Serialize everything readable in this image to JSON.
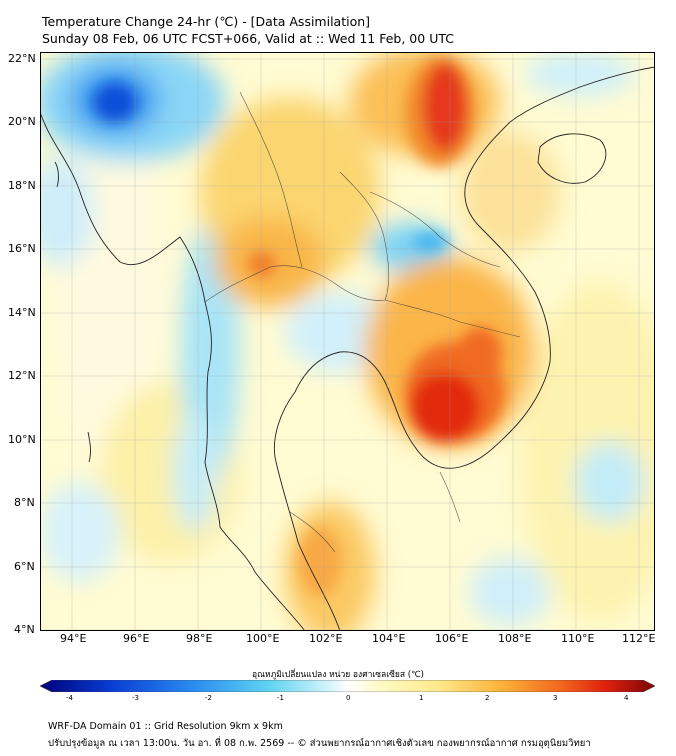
{
  "title": {
    "line1": "Temperature Change 24-hr (℃) - [Data Assimilation]",
    "line2": "Sunday 08 Feb, 06 UTC FCST+066, Valid at :: Wed 11 Feb, 00 UTC"
  },
  "map": {
    "x_axis": {
      "ticks": [
        "94°E",
        "96°E",
        "98°E",
        "100°E",
        "102°E",
        "104°E",
        "106°E",
        "108°E",
        "110°E",
        "112°E"
      ]
    },
    "y_axis": {
      "ticks": [
        "22°N",
        "20°N",
        "18°N",
        "16°N",
        "14°N",
        "12°N",
        "10°N",
        "8°N",
        "6°N",
        "4°N"
      ]
    }
  },
  "colorbar": {
    "label": "อุณหภูมิเปลี่ยนแปลง หน่วย องศาเซลเซียส (℃)",
    "ticks": [
      "-4",
      "-3",
      "-2",
      "-1",
      "0",
      "1",
      "2",
      "3",
      "4"
    ]
  },
  "footer": {
    "line1": "WRF-DA Domain 01 :: Grid Resolution 9km x 9km",
    "line2": "ปรับปรุงข้อมูล ณ เวลา 13:00น. วัน อา. ที่ 08 ก.พ. 2569 -- © ส่วนพยากรณ์อากาศเชิงตัวเลข กองพยากรณ์อากาศ กรมอุตุนิยมวิทยา"
  },
  "colors": {
    "deep_blue": "#0a3fd6",
    "blue": "#2b8cf0",
    "cyan": "#5cd3f2",
    "light_cyan": "#bfeef8",
    "pale_yellow": "#fffbc8",
    "yellow": "#fde88a",
    "orange": "#fbb23a",
    "red_orange": "#f2641c",
    "red": "#e0200c",
    "dark_red": "#7a0606"
  }
}
